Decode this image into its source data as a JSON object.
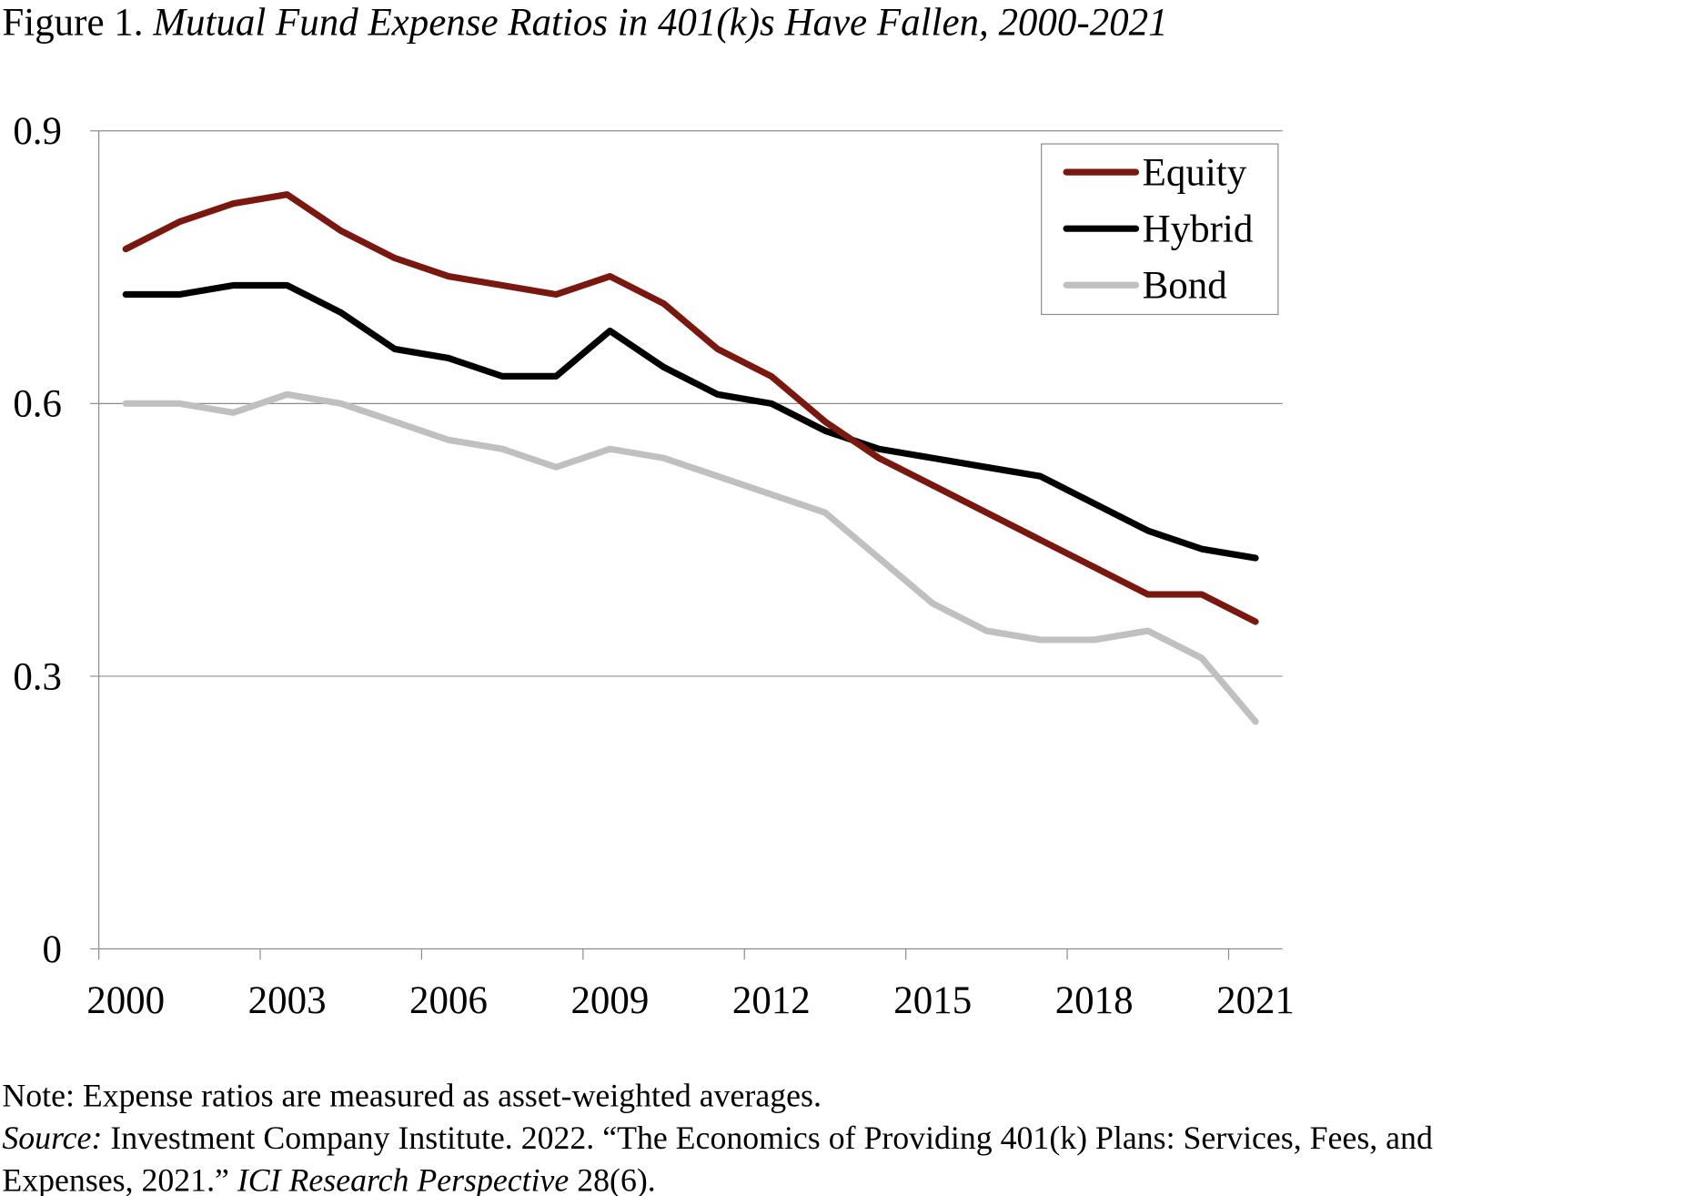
{
  "figure": {
    "label": "Figure 1. ",
    "title": "Mutual Fund Expense Ratios in 401(k)s Have Fallen, 2000-2021"
  },
  "notes": {
    "note": "Note: Expense ratios are measured as asset-weighted averages.",
    "source_label": "Source:",
    "source_line1": " Investment Company Institute. 2022. “The Economics of Providing 401(k) Plans: Services, Fees, and",
    "source_line2a": "Expenses, 2021.” ",
    "source_line2_italic": "ICI Research Perspective",
    "source_line2b": " 28(6)."
  },
  "chart_data": {
    "type": "line",
    "title": "Mutual Fund Expense Ratios in 401(k)s Have Fallen, 2000-2021",
    "xlabel": "",
    "ylabel": "",
    "ylim": [
      0,
      0.9
    ],
    "yticks": [
      "0",
      "0.3",
      "0.6",
      "0.9"
    ],
    "xtick_labels": [
      "2000",
      "2003",
      "2006",
      "2009",
      "2012",
      "2015",
      "2018",
      "2021"
    ],
    "grid": "horizontal",
    "legend_position": "top-right",
    "x": [
      2000,
      2001,
      2002,
      2003,
      2004,
      2005,
      2006,
      2007,
      2008,
      2009,
      2010,
      2011,
      2012,
      2013,
      2014,
      2015,
      2016,
      2017,
      2018,
      2019,
      2020,
      2021
    ],
    "series": [
      {
        "name": "Equity",
        "color": "#7a1810",
        "values": [
          0.77,
          0.8,
          0.82,
          0.83,
          0.79,
          0.76,
          0.74,
          0.73,
          0.72,
          0.74,
          0.71,
          0.66,
          0.63,
          0.58,
          0.54,
          0.51,
          0.48,
          0.45,
          0.42,
          0.39,
          0.39,
          0.36
        ]
      },
      {
        "name": "Hybrid",
        "color": "#000000",
        "values": [
          0.72,
          0.72,
          0.73,
          0.73,
          0.7,
          0.66,
          0.65,
          0.63,
          0.63,
          0.68,
          0.64,
          0.61,
          0.6,
          0.57,
          0.55,
          0.54,
          0.53,
          0.52,
          0.49,
          0.46,
          0.44,
          0.43
        ]
      },
      {
        "name": "Bond",
        "color": "#c0c0c0",
        "values": [
          0.6,
          0.6,
          0.59,
          0.61,
          0.6,
          0.58,
          0.56,
          0.55,
          0.53,
          0.55,
          0.54,
          0.52,
          0.5,
          0.48,
          0.43,
          0.38,
          0.35,
          0.34,
          0.34,
          0.35,
          0.32,
          0.25
        ]
      }
    ]
  }
}
